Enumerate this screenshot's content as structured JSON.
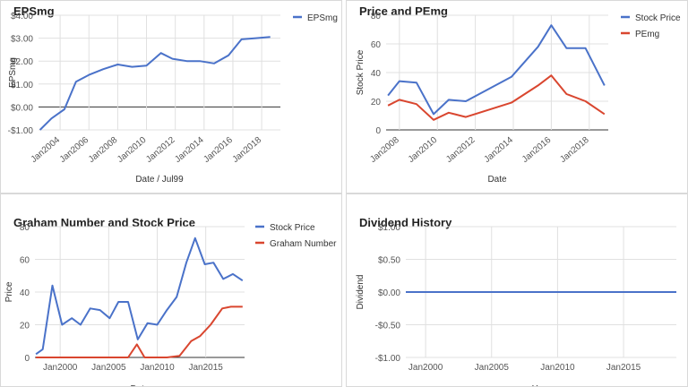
{
  "chart_data": [
    {
      "type": "line",
      "title": "EPSmg",
      "xlabel": "Date / Jul99",
      "ylabel": "EPSmg",
      "ylim": [
        -1,
        4
      ],
      "yticks": [
        -1,
        0,
        1,
        2,
        3,
        4
      ],
      "ytick_labels": [
        "-$1.00",
        "$0.00",
        "$1.00",
        "$2.00",
        "$3.00",
        "$4.00"
      ],
      "xlim": [
        2002.5,
        2019.3
      ],
      "xticks": [
        2004,
        2006,
        2008,
        2010,
        2012,
        2014,
        2016,
        2018
      ],
      "xtick_labels": [
        "Jan2004",
        "Jan2006",
        "Jan2008",
        "Jan2010",
        "Jan2012",
        "Jan2014",
        "Jan2016",
        "Jan2018"
      ],
      "x_tick_rotation": -40,
      "grid": true,
      "legend": "right",
      "series": [
        {
          "name": "EPSmg",
          "color": "#4a72c9",
          "x": [
            2002.6,
            2003.4,
            2004.3,
            2005.1,
            2006.0,
            2007.0,
            2008.0,
            2009.0,
            2010.0,
            2011.0,
            2011.8,
            2012.8,
            2013.7,
            2014.7,
            2015.7,
            2016.6,
            2017.6,
            2018.6
          ],
          "values": [
            -1.0,
            -0.5,
            -0.1,
            1.1,
            1.4,
            1.65,
            1.85,
            1.75,
            1.8,
            2.35,
            2.1,
            2.0,
            2.0,
            1.9,
            2.25,
            2.95,
            3.0,
            3.05
          ]
        }
      ]
    },
    {
      "type": "line",
      "title": "Price and PEmg",
      "xlabel": "Date",
      "ylabel": "Stock Price",
      "ylim": [
        0,
        80
      ],
      "yticks": [
        0,
        20,
        40,
        60,
        80
      ],
      "ytick_labels": [
        "0",
        "20",
        "40",
        "60",
        "80"
      ],
      "xlim": [
        2007.3,
        2019.0
      ],
      "xticks": [
        2008,
        2010,
        2012,
        2014,
        2016,
        2018
      ],
      "xtick_labels": [
        "Jan2008",
        "Jan2010",
        "Jan2012",
        "Jan2014",
        "Jan2016",
        "Jan2018"
      ],
      "x_tick_rotation": -40,
      "grid": true,
      "legend": "right",
      "series": [
        {
          "name": "Stock Price",
          "color": "#4a72c9",
          "x": [
            2007.4,
            2008.0,
            2008.9,
            2009.8,
            2010.6,
            2011.5,
            2013.9,
            2015.3,
            2016.0,
            2016.8,
            2017.8,
            2018.8
          ],
          "values": [
            24,
            34,
            33,
            11,
            21,
            20,
            37,
            58,
            73,
            57,
            57,
            31
          ]
        },
        {
          "name": "PEmg",
          "color": "#d9462f",
          "x": [
            2007.4,
            2008.0,
            2008.9,
            2009.8,
            2010.6,
            2011.5,
            2013.9,
            2015.3,
            2016.0,
            2016.8,
            2017.8,
            2018.8
          ],
          "values": [
            17,
            21,
            18,
            7,
            12,
            9,
            19,
            31,
            38,
            25,
            20,
            11
          ]
        }
      ]
    },
    {
      "type": "line",
      "title": "Graham Number and Stock Price",
      "xlabel": "Date",
      "ylabel": "Price",
      "ylim": [
        0,
        80
      ],
      "yticks": [
        0,
        20,
        40,
        60,
        80
      ],
      "ytick_labels": [
        "0",
        "20",
        "40",
        "60",
        "80"
      ],
      "xlim": [
        1997.4,
        2019.0
      ],
      "xticks": [
        2000,
        2005,
        2010,
        2015
      ],
      "xtick_labels": [
        "Jan2000",
        "Jan2005",
        "Jan2010",
        "Jan2015"
      ],
      "x_tick_rotation": 0,
      "grid": true,
      "legend": "right",
      "series": [
        {
          "name": "Stock Price",
          "color": "#4a72c9",
          "x": [
            1997.5,
            1998.2,
            1999.2,
            2000.2,
            2001.2,
            2002.1,
            2003.1,
            2004.1,
            2005.1,
            2006.0,
            2007.0,
            2008.0,
            2009.0,
            2010.0,
            2011.0,
            2012.0,
            2013.0,
            2013.9,
            2014.9,
            2015.8,
            2016.8,
            2017.8,
            2018.8
          ],
          "values": [
            2,
            5,
            44,
            20,
            24,
            20,
            30,
            29,
            24,
            34,
            34,
            11,
            21,
            20,
            29,
            37,
            58,
            73,
            57,
            58,
            48,
            51,
            47
          ]
        },
        {
          "name": "Graham Number",
          "color": "#d9462f",
          "x": [
            1997.5,
            2000,
            2004,
            2007,
            2007.9,
            2008.7,
            2009,
            2010,
            2011,
            2012.3,
            2013.5,
            2014.4,
            2015.5,
            2016.7,
            2017.6,
            2018.8
          ],
          "values": [
            0,
            0,
            0,
            0,
            8,
            0,
            0,
            0,
            0,
            1,
            10,
            13,
            20,
            30,
            31,
            31
          ]
        }
      ]
    },
    {
      "type": "line",
      "title": "Dividend History",
      "xlabel": "Year",
      "ylabel": "Dividend",
      "ylim": [
        -1,
        1
      ],
      "yticks": [
        -1,
        -0.5,
        0,
        0.5,
        1
      ],
      "ytick_labels": [
        "-$1.00",
        "-$0.50",
        "$0.00",
        "$0.50",
        "$1.00"
      ],
      "xlim": [
        1998.5,
        2019.0
      ],
      "xticks": [
        2000,
        2005,
        2010,
        2015
      ],
      "xtick_labels": [
        "Jan2000",
        "Jan2005",
        "Jan2010",
        "Jan2015"
      ],
      "x_tick_rotation": 0,
      "grid": true,
      "legend": "none",
      "series": [
        {
          "name": "Dividend",
          "color": "#4a72c9",
          "x": [
            1998.5,
            2019.0
          ],
          "values": [
            0,
            0
          ]
        }
      ]
    }
  ]
}
